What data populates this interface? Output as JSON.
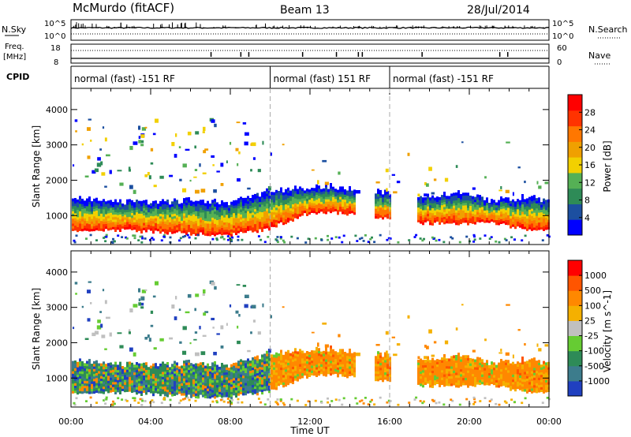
{
  "header": {
    "station": "McMurdo (fitACF)",
    "beam": "Beam 13",
    "date": "28/Jul/2014"
  },
  "summary_panels": {
    "nsky_label": "N.Sky",
    "nsky_ticks": [
      "10^5",
      "10^0"
    ],
    "nsearch_label": "N.Search",
    "nsearch_ticks": [
      "10^5",
      "10^0"
    ],
    "freq_label_1": "Freq.",
    "freq_label_2": "[MHz]",
    "freq_ticks": [
      "18",
      "8"
    ],
    "nave_label": "Nave",
    "nave_ticks": [
      "60",
      "0"
    ],
    "cpid_label": "CPID"
  },
  "cpid_segments": [
    {
      "label": "normal (fast) -151 RF",
      "start_hour": 0,
      "end_hour": 10
    },
    {
      "label": "normal (fast) 151 RF",
      "start_hour": 10,
      "end_hour": 16
    },
    {
      "label": "normal (fast) -151 RF",
      "start_hour": 16,
      "end_hour": 24
    }
  ],
  "x_axis": {
    "label": "Time UT",
    "ticks": [
      "00:00",
      "04:00",
      "08:00",
      "12:00",
      "16:00",
      "20:00",
      "00:00"
    ],
    "range_hours": [
      0,
      24
    ]
  },
  "chart_data": [
    {
      "type": "heatmap",
      "ylabel": "Slant Range [km]",
      "y_ticks": [
        "4000",
        "3000",
        "2000",
        "1000"
      ],
      "ylim": [
        180,
        4600
      ],
      "colorbar": {
        "label": "Power [dB]",
        "ticks": [
          "28",
          "24",
          "20",
          "16",
          "12",
          "8",
          "4"
        ],
        "colors": [
          "#0000ff",
          "#1c4fa0",
          "#2e8b57",
          "#55b055",
          "#f2d000",
          "#f0a000",
          "#ff7700",
          "#ff3300",
          "#ff0000"
        ]
      },
      "main_band": [
        {
          "hour": 0,
          "bottom_km": 600,
          "top_km": 1450
        },
        {
          "hour": 2,
          "bottom_km": 600,
          "top_km": 1400
        },
        {
          "hour": 4,
          "bottom_km": 550,
          "top_km": 1350
        },
        {
          "hour": 6,
          "bottom_km": 500,
          "top_km": 1400
        },
        {
          "hour": 8,
          "bottom_km": 450,
          "top_km": 1350
        },
        {
          "hour": 10,
          "bottom_km": 650,
          "top_km": 1700
        },
        {
          "hour": 12,
          "bottom_km": 1100,
          "top_km": 1750
        },
        {
          "hour": 13,
          "bottom_km": 1100,
          "top_km": 1800
        },
        {
          "hour": 17.5,
          "bottom_km": 800,
          "top_km": 1500
        },
        {
          "hour": 19.5,
          "bottom_km": 750,
          "top_km": 1600
        },
        {
          "hour": 21,
          "bottom_km": 800,
          "top_km": 1400
        },
        {
          "hour": 23,
          "bottom_km": 600,
          "top_km": 1500
        },
        {
          "hour": 24,
          "bottom_km": 600,
          "top_km": 1400
        }
      ]
    },
    {
      "type": "heatmap",
      "ylabel": "Slant Range [km]",
      "y_ticks": [
        "4000",
        "3000",
        "2000",
        "1000"
      ],
      "ylim": [
        180,
        4600
      ],
      "colorbar": {
        "label": "Velocity [m s^-1]",
        "ticks": [
          "1000",
          "500",
          "100",
          "25",
          "-25",
          "-100",
          "-500",
          "-1000"
        ],
        "colors": [
          "#2040c0",
          "#3c7c8c",
          "#2e8b57",
          "#66cc33",
          "#c0c0c0",
          "#f5b000",
          "#ff8800",
          "#ff5500",
          "#ff0000"
        ]
      }
    }
  ]
}
